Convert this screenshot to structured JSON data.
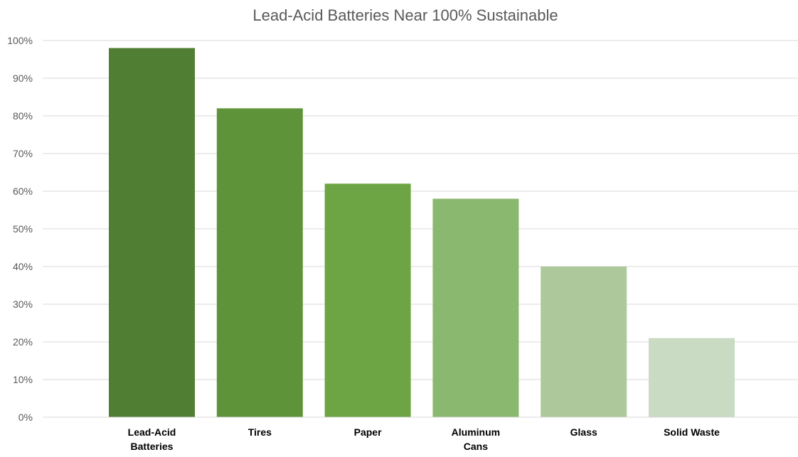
{
  "chart_data": {
    "type": "bar",
    "title": "Lead-Acid Batteries Near 100% Sustainable",
    "categories": [
      "Lead-Acid Batteries",
      "Tires",
      "Paper",
      "Aluminum Cans",
      "Glass",
      "Solid Waste"
    ],
    "category_label_lines": [
      [
        "Lead-Acid",
        "Batteries"
      ],
      [
        "Tires"
      ],
      [
        "Paper"
      ],
      [
        "Aluminum",
        "Cans"
      ],
      [
        "Glass"
      ],
      [
        "Solid Waste"
      ]
    ],
    "values": [
      98,
      82,
      62,
      58,
      40,
      21
    ],
    "bar_colors": [
      "#507E32",
      "#5F933A",
      "#6DA544",
      "#8BB86F",
      "#ADC99C",
      "#C9DBC3"
    ],
    "xlabel": "",
    "ylabel": "",
    "ylim": [
      0,
      100
    ],
    "y_ticks": [
      0,
      10,
      20,
      30,
      40,
      50,
      60,
      70,
      80,
      90,
      100
    ],
    "y_tick_labels": [
      "0%",
      "10%",
      "20%",
      "30%",
      "40%",
      "50%",
      "60%",
      "70%",
      "80%",
      "90%",
      "100%"
    ],
    "grid": true,
    "legend": "none"
  }
}
